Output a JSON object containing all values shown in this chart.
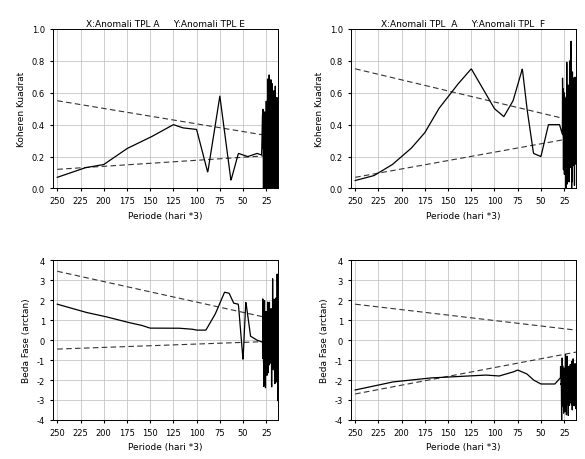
{
  "title_AE": "X:Anomali TPL A     Y:Anomali TPL E",
  "title_AF": "X:Anomali TPL  A     Y:Anomali TPL  F",
  "xlabel": "Periode (hari *3)",
  "ylabel_koheren": "Koheren Kuadrat",
  "ylabel_fase": "Beda Fase (arctan)",
  "koheren_ylim": [
    0.0,
    1.0
  ],
  "fase_ylim": [
    -4,
    4
  ],
  "xticks": [
    250,
    225,
    200,
    175,
    150,
    125,
    100,
    75,
    50,
    25
  ],
  "background_color": "#ffffff",
  "grid_color": "#bbbbbb",
  "line_color": "#000000",
  "dashed_color": "#333333",
  "ax_bg": "#ffffff"
}
